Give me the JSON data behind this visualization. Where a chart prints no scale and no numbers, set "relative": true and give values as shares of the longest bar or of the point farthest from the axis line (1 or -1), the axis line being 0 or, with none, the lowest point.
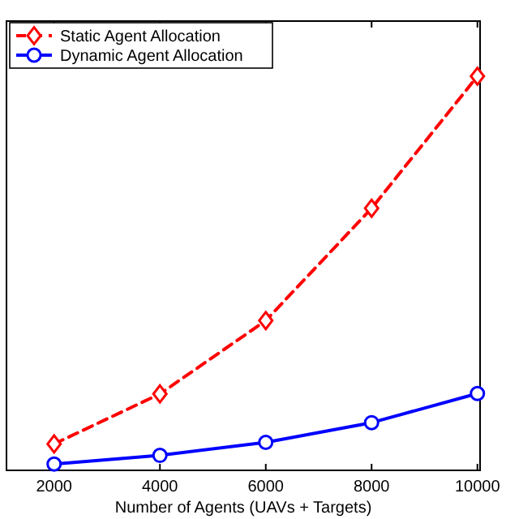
{
  "chart_data": {
    "type": "line",
    "relative": true,
    "xlabel": "Number of Agents (UAVs + Targets)",
    "x": [
      2000,
      4000,
      6000,
      8000,
      10000
    ],
    "xlim": [
      1100,
      10050
    ],
    "xticks": [
      2000,
      4000,
      6000,
      8000,
      10000
    ],
    "legend": "top left",
    "grid": false,
    "series": [
      {
        "name": "Static Agent Allocation",
        "color": "#ff0000",
        "marker": "diamond",
        "line_style": "dashed",
        "values": [
          0.067,
          0.194,
          0.38,
          0.665,
          1
        ]
      },
      {
        "name": "Dynamic Agent Allocation",
        "color": "#0000ff",
        "marker": "circle",
        "line_style": "solid",
        "values": [
          0.016,
          0.038,
          0.071,
          0.121,
          0.195
        ]
      }
    ]
  }
}
